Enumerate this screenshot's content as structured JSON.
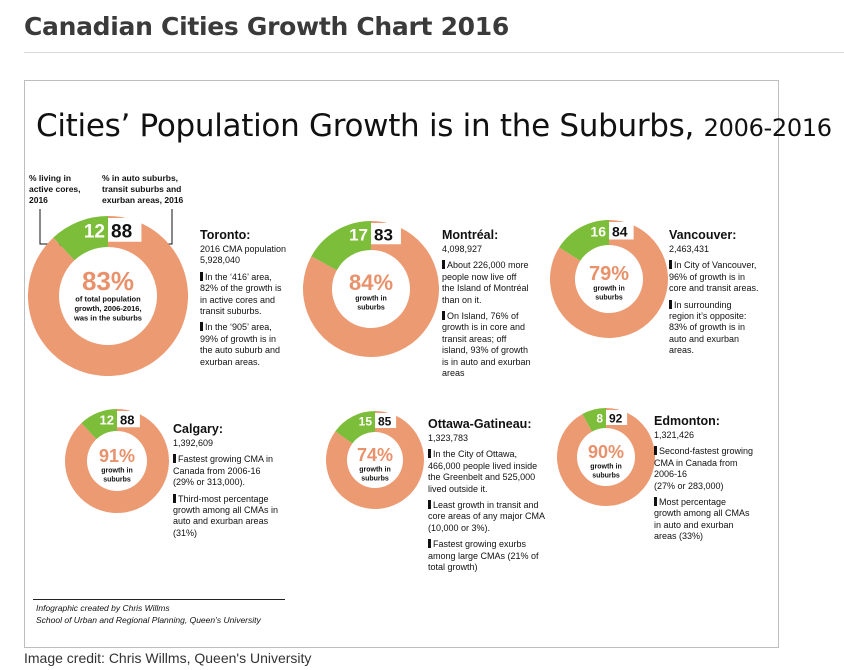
{
  "page": {
    "title": "Canadian Cities Growth Chart 2016",
    "caption": "Image credit: Chris Willms, Queen's University"
  },
  "infographic": {
    "title_main": "Cities’ Population Growth is in the Suburbs,",
    "title_years": "2006-2016",
    "legend_cores": [
      "% living in",
      "active cores,",
      "2016"
    ],
    "legend_suburbs": [
      "% in auto suburbs,",
      "transit suburbs and",
      "exurban areas, 2016"
    ],
    "credit_line1": "Infographic created  by Chris Willms",
    "credit_line2": "School of Urban and Regional Planning, Queen’s University"
  },
  "colors": {
    "core": "#7cbd3a",
    "suburb": "#ec9a72",
    "center_text": "#e8916b"
  },
  "chart_data": {
    "type": "pie",
    "title": "Cities’ Population Growth is in the Suburbs, 2006-2016",
    "series": [
      {
        "name": "% living in active cores, 2016",
        "values": [
          12,
          17,
          16,
          12,
          15,
          8
        ]
      },
      {
        "name": "% in auto suburbs, transit suburbs and exurban areas, 2016",
        "values": [
          88,
          83,
          84,
          88,
          85,
          92
        ]
      },
      {
        "name": "% of total population growth in suburbs, 2006-2016",
        "values": [
          83,
          84,
          79,
          91,
          74,
          90
        ]
      }
    ],
    "charts": [
      {
        "city": "Toronto",
        "core_pct": 12,
        "suburb_pct": 88,
        "core_label": "12",
        "suburb_label": "88",
        "growth_pct": 83,
        "growth_label": "83%",
        "growth_sub": [
          "of total population",
          "growth, 2006-2016,",
          "was in the suburbs"
        ]
      },
      {
        "city": "Montréal",
        "core_pct": 17,
        "suburb_pct": 83,
        "core_label": "17",
        "suburb_label": "83",
        "growth_pct": 84,
        "growth_label": "84%",
        "growth_sub": [
          "growth in",
          "suburbs"
        ]
      },
      {
        "city": "Vancouver",
        "core_pct": 16,
        "suburb_pct": 84,
        "core_label": "16",
        "suburb_label": "84",
        "growth_pct": 79,
        "growth_label": "79%",
        "growth_sub": [
          "growth in",
          "suburbs"
        ]
      },
      {
        "city": "Calgary",
        "core_pct": 12,
        "suburb_pct": 88,
        "core_label": "12",
        "suburb_label": "88",
        "growth_pct": 91,
        "growth_label": "91%",
        "growth_sub": [
          "growth in",
          "suburbs"
        ]
      },
      {
        "city": "Ottawa-Gatineau",
        "core_pct": 15,
        "suburb_pct": 85,
        "core_label": "15",
        "suburb_label": "85",
        "growth_pct": 74,
        "growth_label": "74%",
        "growth_sub": [
          "growth in",
          "suburbs"
        ]
      },
      {
        "city": "Edmonton",
        "core_pct": 8,
        "suburb_pct": 92,
        "core_label": "8",
        "suburb_label": "92",
        "growth_pct": 90,
        "growth_label": "90%",
        "growth_sub": [
          "growth in",
          "suburbs"
        ]
      }
    ]
  },
  "cities": [
    {
      "name": "Toronto:",
      "lines": [
        "2016 CMA population",
        "5,928,040"
      ],
      "notes": [
        [
          "In the ‘416’ area,",
          "82% of the growth is",
          "in active cores and",
          "transit suburbs."
        ],
        [
          "In the ‘905’ area,",
          "99% of growth is in",
          "the auto suburb and",
          "exurban areas."
        ]
      ]
    },
    {
      "name": "Montréal:",
      "lines": [
        "4,098,927"
      ],
      "notes": [
        [
          "About 226,000 more",
          "people now live off",
          "the Island of Montréal",
          "than on it."
        ],
        [
          "On Island, 76% of",
          "growth is in core and",
          "transit areas; off",
          "island, 93% of growth",
          "is in auto and exurban",
          "areas"
        ]
      ]
    },
    {
      "name": "Vancouver:",
      "lines": [
        "2,463,431"
      ],
      "notes": [
        [
          "In City of Vancouver,",
          "96% of growth is in",
          "core and transit areas."
        ],
        [
          "In surrounding",
          "region it’s opposite:",
          "83% of growth is in",
          "auto and exurban",
          "areas."
        ]
      ]
    },
    {
      "name": "Calgary:",
      "lines": [
        "1,392,609"
      ],
      "notes": [
        [
          "Fastest growing CMA in",
          "Canada from 2006-16",
          "(29% or 313,000)."
        ],
        [
          "Third-most percentage",
          "growth among all CMAs in",
          "auto and exurban areas",
          "(31%)"
        ]
      ]
    },
    {
      "name": "Ottawa-Gatineau:",
      "lines": [
        "1,323,783"
      ],
      "notes": [
        [
          "In the City of Ottawa,",
          "466,000 people lived inside",
          "the Greenbelt and 525,000",
          "lived outside it."
        ],
        [
          "Least growth in transit and",
          "core areas of any major CMA",
          "(10,000 or 3%)."
        ],
        [
          "Fastest growing exurbs",
          "among large CMAs (21% of",
          "total growth)"
        ]
      ]
    },
    {
      "name": "Edmonton:",
      "lines": [
        "1,321,426"
      ],
      "notes": [
        [
          "Second-fastest growing",
          "CMA in Canada from",
          "2006-16",
          "(27% or 283,000)"
        ],
        [
          "Most percentage",
          "growth among all CMAs",
          "in auto and exurban",
          "areas (33%)"
        ]
      ]
    }
  ]
}
